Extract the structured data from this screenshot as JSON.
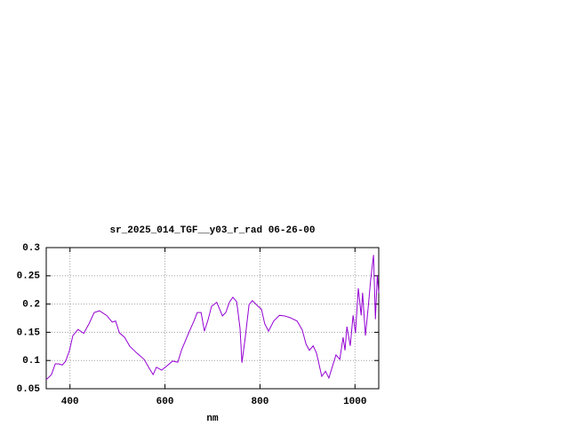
{
  "chart_data": {
    "type": "line",
    "title": "sr_2025_014_TGF__y03_r_rad 06-26-00",
    "x_label": "nm",
    "x": [
      350,
      361,
      369,
      376,
      384,
      391,
      399,
      406,
      417,
      429,
      440,
      451,
      462,
      477,
      489,
      496,
      504,
      515,
      526,
      541,
      556,
      567,
      575,
      582,
      593,
      605,
      616,
      627,
      635,
      650,
      661,
      668,
      676,
      683,
      691,
      698,
      709,
      721,
      728,
      736,
      743,
      751,
      758,
      762,
      769,
      777,
      784,
      796,
      803,
      810,
      818,
      829,
      841,
      852,
      863,
      878,
      889,
      897,
      904,
      912,
      919,
      930,
      938,
      945,
      953,
      960,
      968,
      975,
      979,
      983,
      990,
      996,
      1001,
      1007,
      1013,
      1016,
      1022,
      1028,
      1033,
      1039,
      1043,
      1047,
      1050
    ],
    "values": [
      0.066,
      0.075,
      0.094,
      0.094,
      0.092,
      0.099,
      0.118,
      0.144,
      0.155,
      0.148,
      0.165,
      0.185,
      0.188,
      0.18,
      0.168,
      0.17,
      0.149,
      0.141,
      0.125,
      0.113,
      0.102,
      0.086,
      0.075,
      0.088,
      0.083,
      0.091,
      0.099,
      0.097,
      0.119,
      0.149,
      0.17,
      0.185,
      0.185,
      0.152,
      0.173,
      0.196,
      0.203,
      0.179,
      0.185,
      0.204,
      0.212,
      0.204,
      0.157,
      0.096,
      0.141,
      0.199,
      0.206,
      0.196,
      0.191,
      0.165,
      0.152,
      0.17,
      0.18,
      0.179,
      0.176,
      0.17,
      0.154,
      0.129,
      0.118,
      0.126,
      0.113,
      0.072,
      0.081,
      0.069,
      0.091,
      0.11,
      0.102,
      0.141,
      0.118,
      0.16,
      0.126,
      0.18,
      0.149,
      0.228,
      0.18,
      0.22,
      0.144,
      0.196,
      0.243,
      0.287,
      0.173,
      0.251,
      0.22
    ],
    "color": "#9400d3",
    "xlim": [
      350,
      1050
    ],
    "xticks": [
      400,
      600,
      800,
      1000
    ],
    "ylim": [
      0.05,
      0.3
    ],
    "yticks": [
      0.05,
      0.1,
      0.15,
      0.2,
      0.25,
      0.3
    ],
    "grid": true
  }
}
